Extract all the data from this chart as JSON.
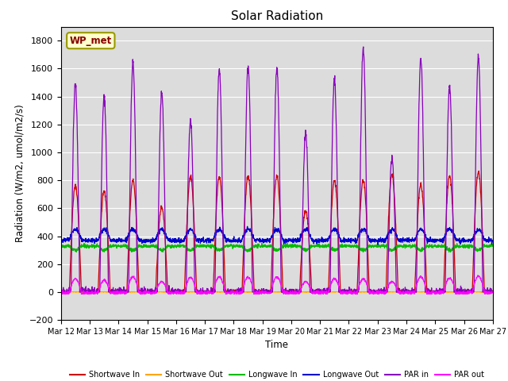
{
  "title": "Solar Radiation",
  "ylabel": "Radiation (W/m2, umol/m2/s)",
  "xlabel": "Time",
  "x_tick_labels": [
    "Mar 12",
    "Mar 13",
    "Mar 14",
    "Mar 15",
    "Mar 16",
    "Mar 17",
    "Mar 18",
    "Mar 19",
    "Mar 20",
    "Mar 21",
    "Mar 22",
    "Mar 23",
    "Mar 24",
    "Mar 25",
    "Mar 26",
    "Mar 27"
  ],
  "ylim": [
    -200,
    1900
  ],
  "yticks": [
    -200,
    0,
    200,
    400,
    600,
    800,
    1000,
    1200,
    1400,
    1600,
    1800
  ],
  "series": [
    {
      "label": "Shortwave In",
      "color": "#CC0000"
    },
    {
      "label": "Shortwave Out",
      "color": "#FFA500"
    },
    {
      "label": "Longwave In",
      "color": "#00BB00"
    },
    {
      "label": "Longwave Out",
      "color": "#0000CC"
    },
    {
      "label": "PAR in",
      "color": "#8800BB"
    },
    {
      "label": "PAR out",
      "color": "#FF00FF"
    }
  ],
  "background_color": "#DCDCDC",
  "box_label": "WP_met",
  "box_facecolor": "#FFFFCC",
  "box_edgecolor": "#999900",
  "box_textcolor": "#880000",
  "sw_in_peaks": [
    760,
    720,
    800,
    610,
    830,
    825,
    830,
    830,
    580,
    800,
    800,
    840,
    770,
    830,
    860
  ],
  "par_in_peaks": [
    1490,
    1400,
    1640,
    1420,
    1230,
    1590,
    1610,
    1600,
    1140,
    1530,
    1740,
    960,
    1680,
    1480,
    1680
  ],
  "par_out_peaks": [
    95,
    85,
    110,
    75,
    105,
    110,
    105,
    110,
    75,
    95,
    95,
    75,
    110,
    100,
    115
  ],
  "n_days": 15,
  "pts_per_day": 144
}
